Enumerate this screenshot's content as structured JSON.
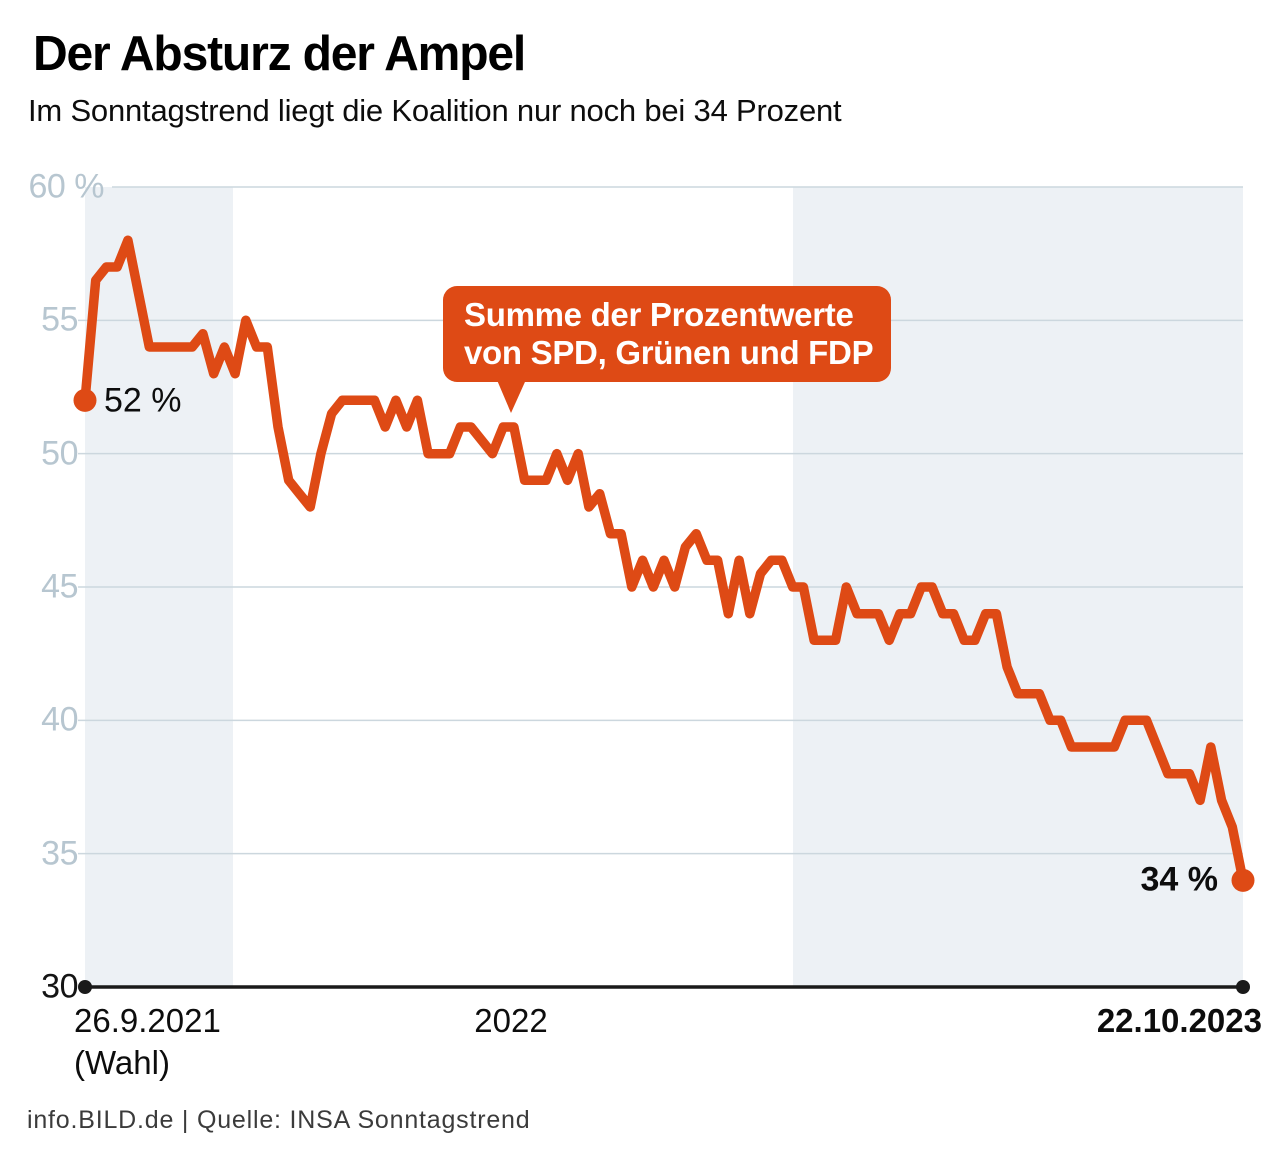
{
  "header": {
    "title": "Der Absturz der Ampel",
    "subtitle": "Im Sonntagstrend liegt die Koalition nur noch bei 34 Prozent"
  },
  "annotation": {
    "line1": "Summe der Prozentwerte",
    "line2": "von SPD, Grünen und FDP"
  },
  "value_labels": {
    "start": "52 %",
    "end": "34 %"
  },
  "footer": {
    "source": "info.BILD.de | Quelle: INSA Sonntagstrend"
  },
  "colors": {
    "accent": "#de4a15",
    "band": "#edf1f5",
    "grid": "#ccd7de",
    "axis": "#1a1a1a",
    "tick_light": "#b7c6d0",
    "tick_dark": "#141414"
  },
  "chart_data": {
    "type": "line",
    "title": "Der Absturz der Ampel",
    "subtitle": "Im Sonntagstrend liegt die Koalition nur noch bei 34 Prozent",
    "unit": "%",
    "x_start": "26.9.2021 (Wahl)",
    "x_end": "22.10.2023",
    "cadence": "weekly",
    "series": [
      {
        "name": "Summe der Prozentwerte von SPD, Grünen und FDP",
        "values": [
          52,
          56.5,
          57,
          57,
          58,
          56,
          54,
          54,
          54,
          54,
          54,
          54.5,
          53,
          54,
          53,
          55,
          54,
          54,
          51,
          49,
          48.5,
          48,
          50,
          51.5,
          52,
          52,
          52,
          52,
          51,
          52,
          51,
          52,
          50,
          50,
          50,
          51,
          51,
          50.5,
          50,
          51,
          51,
          49,
          49,
          49,
          50,
          49,
          50,
          48,
          48.5,
          47,
          47,
          45,
          46,
          45,
          46,
          45,
          46.5,
          47,
          46,
          46,
          44,
          46,
          44,
          45.5,
          46,
          46,
          45,
          45,
          43,
          43,
          43,
          45,
          44,
          44,
          44,
          43,
          44,
          44,
          45,
          45,
          44,
          44,
          43,
          43,
          44,
          44,
          42,
          41,
          41,
          41,
          40,
          40,
          39,
          39,
          39,
          39,
          39,
          40,
          40,
          40,
          39,
          38,
          38,
          38,
          37,
          39,
          37,
          36,
          34
        ]
      }
    ],
    "first_value": 52,
    "last_value": 34,
    "y_axis": {
      "min": 30,
      "max": 60,
      "ticks": [
        {
          "v": 30,
          "label": "30"
        },
        {
          "v": 35,
          "label": "35"
        },
        {
          "v": 40,
          "label": "40"
        },
        {
          "v": 45,
          "label": "45"
        },
        {
          "v": 50,
          "label": "50"
        },
        {
          "v": 55,
          "label": "55"
        },
        {
          "v": 60,
          "label": "60 %"
        }
      ]
    },
    "x_axis": {
      "start_label": "26.9.2021",
      "start_sublabel": "(Wahl)",
      "mid_label": "2022",
      "end_label": "22.10.2023"
    },
    "shaded_year_bands": [
      {
        "label": "2021",
        "from_frac": 0.0,
        "to_frac": 0.1278
      },
      {
        "label": "2023",
        "from_frac": 0.6114,
        "to_frac": 1.0
      }
    ],
    "grid": true,
    "legend": false
  }
}
